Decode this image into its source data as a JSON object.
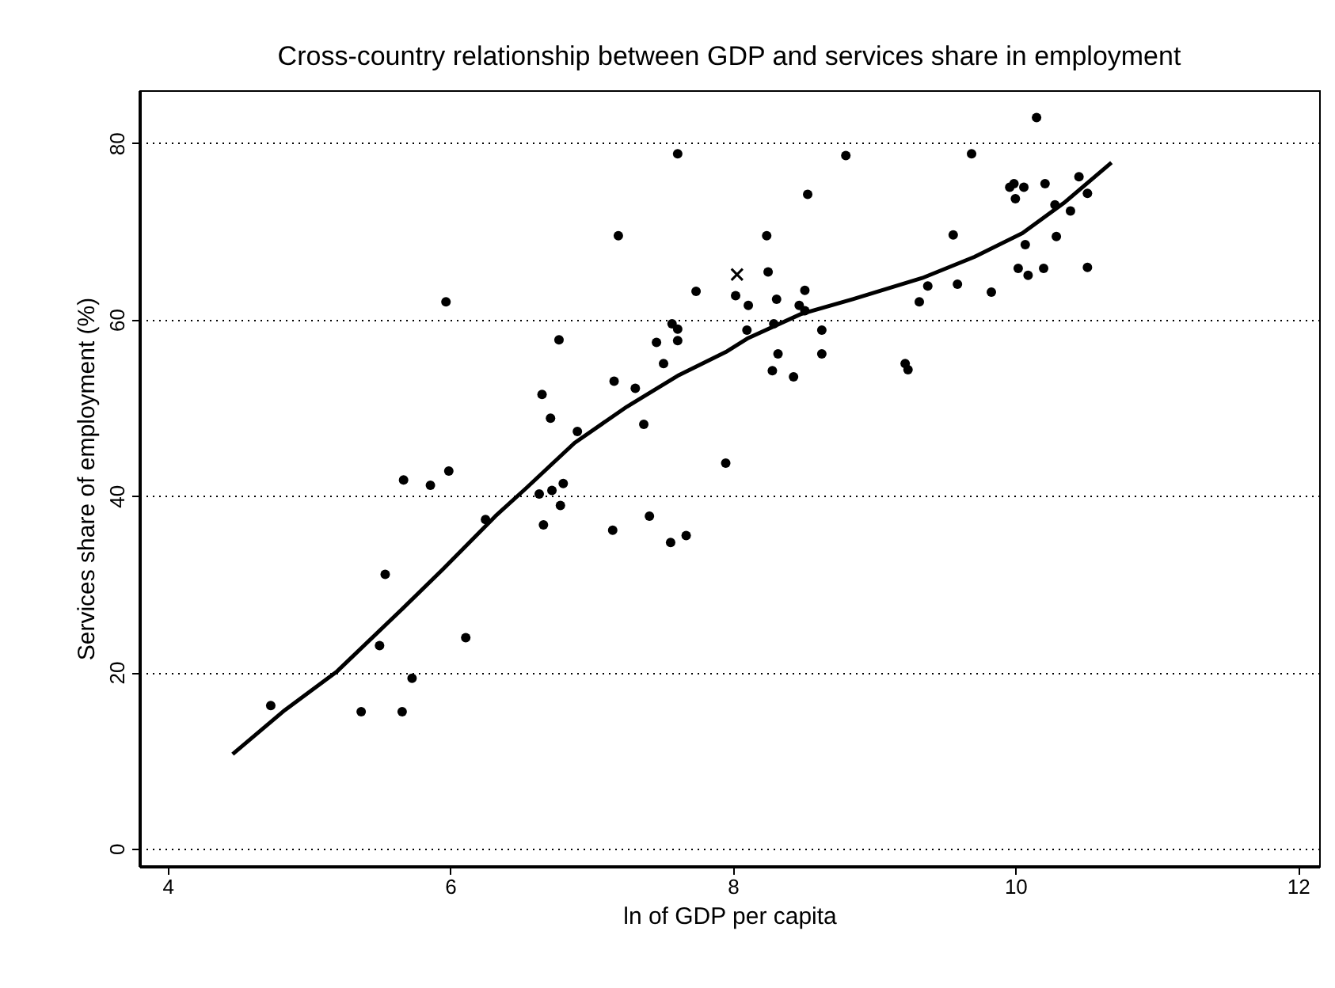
{
  "chart_data": {
    "type": "scatter",
    "title": "Cross-country relationship between GDP and services share in employment",
    "xlabel": "ln of GDP per capita",
    "ylabel": "Services share of employment (%)",
    "xlim": [
      3.8,
      12.15
    ],
    "ylim": [
      -2,
      86
    ],
    "xticks": [
      4,
      6,
      8,
      10,
      12
    ],
    "yticks": [
      0,
      20,
      40,
      60,
      80
    ],
    "grid": "y",
    "series": [
      {
        "marker": "circle",
        "color": "#000000",
        "x": [
          7.61,
          7.19,
          5.97,
          7.74,
          6.77,
          7.57,
          7.61,
          7.46,
          7.61,
          7.51,
          7.16,
          7.31,
          6.65,
          6.71,
          6.9,
          7.37,
          7.95,
          5.67,
          5.86,
          5.99,
          6.8,
          6.63,
          6.72,
          6.78,
          6.66,
          6.25,
          5.54,
          5.5,
          6.11,
          5.73,
          4.73,
          5.37,
          5.66,
          7.15,
          7.41,
          7.56,
          7.67,
          10.15,
          8.8,
          9.69,
          8.53,
          9.99,
          9.96,
          10.0,
          10.06,
          10.21,
          10.45,
          10.51,
          10.28,
          10.39,
          8.24,
          9.56,
          10.29,
          10.07,
          8.25,
          10.51,
          10.02,
          10.09,
          10.2,
          8.02,
          8.31,
          8.51,
          8.11,
          8.47,
          8.51,
          9.38,
          9.59,
          9.32,
          9.83,
          8.1,
          8.29,
          8.63,
          8.32,
          8.63,
          8.28,
          8.43,
          9.22,
          9.24
        ],
        "values": [
          78.8,
          69.5,
          62.0,
          63.2,
          57.7,
          59.5,
          58.9,
          57.4,
          57.6,
          55.0,
          53.0,
          52.2,
          51.5,
          48.8,
          47.3,
          48.1,
          43.7,
          41.8,
          41.2,
          42.8,
          41.4,
          40.2,
          40.6,
          38.9,
          36.7,
          37.3,
          31.1,
          23.0,
          23.9,
          19.3,
          16.2,
          15.5,
          15.5,
          36.1,
          37.7,
          34.7,
          35.5,
          82.9,
          78.6,
          78.8,
          74.2,
          75.4,
          75.0,
          73.7,
          75.0,
          75.4,
          76.2,
          74.3,
          73.0,
          72.3,
          69.5,
          69.6,
          69.4,
          68.5,
          65.4,
          65.9,
          65.8,
          65.0,
          65.8,
          62.7,
          62.3,
          63.3,
          61.6,
          61.6,
          61.0,
          63.8,
          64.0,
          62.0,
          63.1,
          58.8,
          59.5,
          58.8,
          56.1,
          56.1,
          54.2,
          53.5,
          55.0,
          54.3
        ]
      },
      {
        "marker": "cross",
        "color": "#000000",
        "x": [
          8.03
        ],
        "values": [
          65.1
        ]
      },
      {
        "type": "line",
        "marker": "none",
        "line_style": "solid",
        "color": "#000000",
        "x": [
          4.46,
          4.83,
          5.2,
          5.65,
          5.95,
          6.32,
          6.54,
          6.7,
          6.88,
          7.25,
          7.62,
          7.96,
          8.11,
          8.48,
          8.85,
          9.34,
          9.71,
          10.05,
          10.35,
          10.68
        ],
        "values": [
          10.7,
          15.7,
          20.1,
          27.0,
          31.7,
          37.7,
          40.9,
          43.3,
          46.0,
          50.1,
          53.7,
          56.4,
          57.9,
          60.6,
          62.3,
          64.7,
          67.1,
          69.8,
          73.3,
          77.8
        ]
      }
    ]
  }
}
